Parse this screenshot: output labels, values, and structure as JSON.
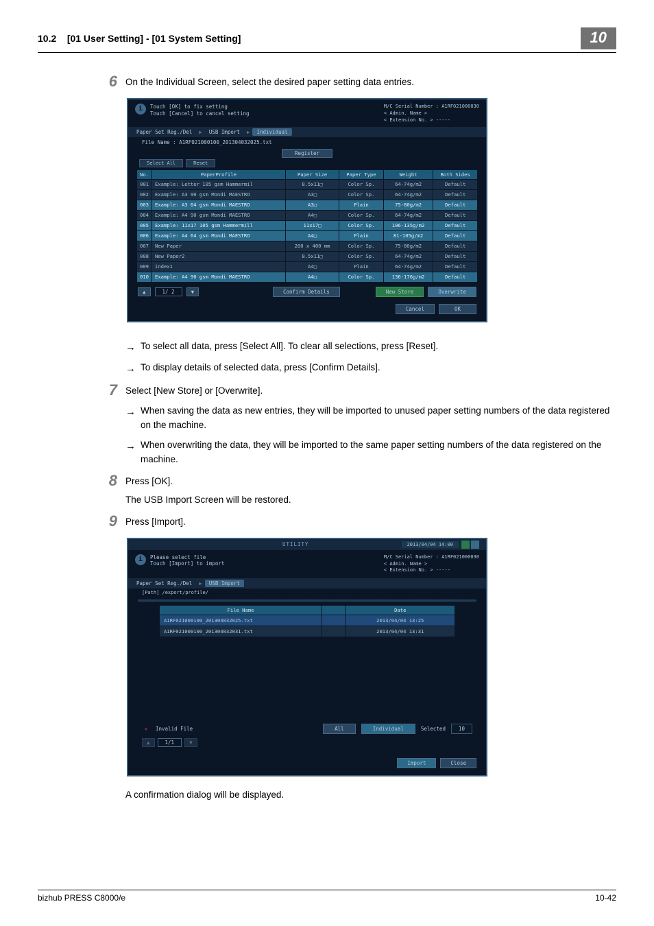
{
  "header": {
    "section_number": "10.2",
    "section_title": "[01 User Setting] - [01 System Setting]",
    "chapter_number": "10"
  },
  "step6": {
    "num": "6",
    "text": "On the Individual Screen, select the desired paper setting data entries.",
    "arrows": [
      "To select all data, press [Select All]. To clear all selections, press [Reset].",
      "To display details of selected data, press [Confirm Details]."
    ]
  },
  "step7": {
    "num": "7",
    "text": "Select [New Store] or [Overwrite].",
    "arrows": [
      "When saving the data as new entries, they will be imported to unused paper setting numbers of the data registered on the machine.",
      "When overwriting the data, they will be imported to the same paper setting numbers of the data registered on the machine."
    ]
  },
  "step8": {
    "num": "8",
    "text": "Press [OK].",
    "plain": "The USB Import Screen will be restored."
  },
  "step9": {
    "num": "9",
    "text": "Press [Import].",
    "plain_after": "A confirmation dialog will be displayed."
  },
  "scr1": {
    "info_line1": "Touch [OK] to fix setting",
    "info_line2": "Touch [Cancel] to cancel setting",
    "serial_label": "M/C Serial Number :",
    "serial_value": "A1RF021000030",
    "admin_label": "< Admin. Name >",
    "ext_label": "< Extension No. > -----",
    "crumb1": "Paper Set Reg./Del",
    "crumb2": "USB Import",
    "crumb3": "Individual",
    "file_label": "File Name :",
    "file_value": "A1RF021000100_201304032025.txt",
    "register_tab": "Register",
    "select_all": "Select All",
    "reset": "Reset",
    "columns": [
      "No.",
      "PaperProfile",
      "Paper Size",
      "Paper Type",
      "Weight",
      "Both Sides"
    ],
    "rows": [
      {
        "no": "001",
        "name": "Example: Letter 105 gsm Hammermil",
        "size": "8.5x11□",
        "type": "Color Sp.",
        "weight": "64-74g/m2",
        "sides": "Default",
        "sel": false
      },
      {
        "no": "002",
        "name": "Example: A3 90 gsm Mondi MAESTRO",
        "size": "A3□",
        "type": "Color Sp.",
        "weight": "64-74g/m2",
        "sides": "Default",
        "sel": false
      },
      {
        "no": "003",
        "name": "Example: A3 64 gsm Mondi MAESTRO",
        "size": "A3□",
        "type": "Plain",
        "weight": "75-80g/m2",
        "sides": "Default",
        "sel": true
      },
      {
        "no": "004",
        "name": "Example: A4 90 gsm Mondi MAESTRO",
        "size": "A4□",
        "type": "Color Sp.",
        "weight": "64-74g/m2",
        "sides": "Default",
        "sel": false
      },
      {
        "no": "005",
        "name": "Example: 11x17 105 gsm Hammermill",
        "size": "11x17□",
        "type": "Color Sp.",
        "weight": "106-135g/m2",
        "sides": "Default",
        "sel": true
      },
      {
        "no": "006",
        "name": "Example: A4 64 gsm Mondi MAESTRO",
        "size": "A4□",
        "type": "Plain",
        "weight": "81-105g/m2",
        "sides": "Default",
        "sel": true
      },
      {
        "no": "007",
        "name": "New Paper",
        "size": "200 x 400 mm",
        "type": "Color Sp.",
        "weight": "75-80g/m2",
        "sides": "Default",
        "sel": false
      },
      {
        "no": "008",
        "name": "New Paper2",
        "size": "8.5x11□",
        "type": "Color Sp.",
        "weight": "64-74g/m2",
        "sides": "Default",
        "sel": false
      },
      {
        "no": "009",
        "name": "index1",
        "size": "A4□",
        "type": "Plain",
        "weight": "64-74g/m2",
        "sides": "Default",
        "sel": false
      },
      {
        "no": "010",
        "name": "Example: A4 90 gsm Mondi MAESTRO",
        "size": "A4□",
        "type": "Color Sp.",
        "weight": "136-176g/m2",
        "sides": "Default",
        "sel": true
      }
    ],
    "page_up": "▲",
    "page_down": "▼",
    "page_num": "1/  2",
    "confirm_details": "Confirm Details",
    "new_store": "New Store",
    "overwrite": "Overwrite",
    "cancel": "Cancel",
    "ok": "OK"
  },
  "scr2": {
    "utility": "UTILITY",
    "date": "2013/04/04 14:00",
    "info_line1": "Please select file",
    "info_line2": "Touch [Import] to import",
    "serial_label": "M/C Serial Number :",
    "serial_value": "A1RF021000030",
    "admin_label": "< Admin. Name >",
    "ext_label": "< Extension No. > -----",
    "crumb1": "Paper Set Reg./Del",
    "crumb2": "USB Import",
    "path_label": "[Path] /export/profile/",
    "col_file": "File Name",
    "col_date": "Date",
    "rows": [
      {
        "file": "A1RF021000100_201304032025.txt",
        "date": "2013/04/04 13:25",
        "sel": true
      },
      {
        "file": "A1RF021000100_201304032031.txt",
        "date": "2013/04/04 13:31",
        "sel": false
      }
    ],
    "invalid": "Invalid File",
    "all_btn": "All",
    "individual_btn": "Individual",
    "selected_label": "Selected",
    "selected_count": "10",
    "page_up": "▲",
    "page_down": "▼",
    "page_num": "1/1",
    "import": "Import",
    "close": "Close"
  },
  "footer": {
    "left": "bizhub PRESS C8000/e",
    "right": "10-42"
  }
}
